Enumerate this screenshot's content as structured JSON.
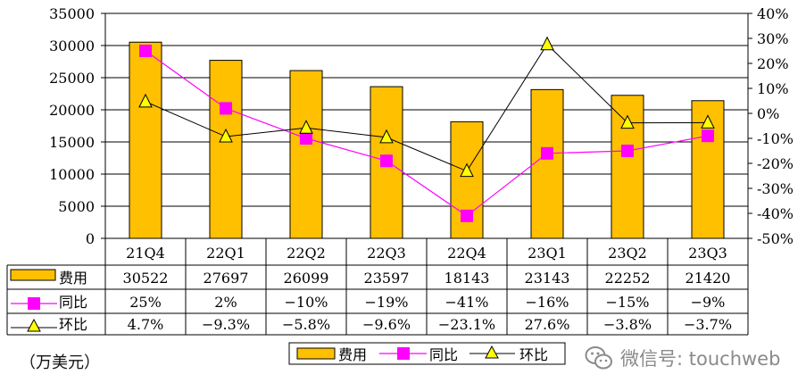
{
  "chart_data": {
    "type": "bar",
    "categories": [
      "21Q4",
      "22Q1",
      "22Q2",
      "22Q3",
      "22Q4",
      "23Q1",
      "23Q2",
      "23Q3"
    ],
    "series": [
      {
        "name": "费用",
        "kind": "bar",
        "axis": "left",
        "values": [
          30522,
          27697,
          26099,
          23597,
          18143,
          23143,
          22252,
          21420
        ],
        "labels": [
          "30522",
          "27697",
          "26099",
          "23597",
          "18143",
          "23143",
          "22252",
          "21420"
        ],
        "color": "#FFC000"
      },
      {
        "name": "同比",
        "kind": "line",
        "axis": "right",
        "values": [
          25,
          2,
          -10,
          -19,
          -41,
          -16,
          -15,
          -9
        ],
        "labels": [
          "25%",
          "2%",
          "-10%",
          "-19%",
          "-41%",
          "-16%",
          "-15%",
          "-9%"
        ],
        "color": "#FF00FF"
      },
      {
        "name": "环比",
        "kind": "line",
        "axis": "right",
        "values": [
          4.7,
          -9.3,
          -5.8,
          -9.6,
          -23.1,
          27.6,
          -3.8,
          -3.7
        ],
        "labels": [
          "4.7%",
          "-9.3%",
          "-5.8%",
          "-9.6%",
          "-23.1%",
          "27.6%",
          "-3.8%",
          "-3.7%"
        ],
        "color": "#000000",
        "marker_color": "#FFFF00"
      }
    ],
    "ylim": [
      0,
      35000
    ],
    "yticks": [
      "0",
      "5000",
      "10000",
      "15000",
      "20000",
      "25000",
      "30000",
      "35000"
    ],
    "y2lim": [
      -50,
      40
    ],
    "y2ticks": [
      "-50%",
      "-40%",
      "-30%",
      "-20%",
      "-10%",
      "0%",
      "10%",
      "20%",
      "30%",
      "40%"
    ],
    "grid": true,
    "data_table": true,
    "legend": [
      "费用",
      "同比",
      "环比"
    ],
    "unit_label": "（万美元）"
  },
  "watermark": {
    "text": "微信号: touchweb",
    "icon": "wechat-icon"
  }
}
